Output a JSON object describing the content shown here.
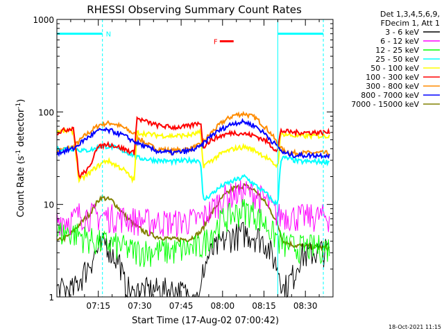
{
  "chart_data": {
    "type": "line",
    "title": "RHESSI Observing Summary Count Rates",
    "xlabel": "Start Time (17-Aug-02 07:00:42)",
    "ylabel_main": "Count Rate (s",
    "ylabel_sup1": "-1",
    "ylabel_mid": " detector",
    "ylabel_sup2": "-1",
    "ylabel_end": ")",
    "y_scale": "log",
    "ylim": [
      1,
      1000
    ],
    "xlim_minutes": [
      0,
      100
    ],
    "y_ticks": [
      "1",
      "10",
      "100",
      "1000"
    ],
    "x_ticks": [
      {
        "label": "07:15",
        "minute": 15
      },
      {
        "label": "07:30",
        "minute": 30
      },
      {
        "label": "07:45",
        "minute": 45
      },
      {
        "label": "08:00",
        "minute": 60
      },
      {
        "label": "08:15",
        "minute": 75
      },
      {
        "label": "08:30",
        "minute": 90
      }
    ],
    "legend_header": [
      "Det 1,3,4,5,6,9,",
      "FDecim 1, Att 1"
    ],
    "legend_placement": "right",
    "series": [
      {
        "name": "3 - 6 keV",
        "color": "#000000",
        "night": 1.0,
        "x": [
          0,
          6,
          14,
          18,
          20,
          23,
          24,
          28,
          29,
          42,
          52,
          53,
          55,
          58,
          62,
          68,
          73,
          76,
          78,
          81,
          82,
          86,
          88,
          96,
          99
        ],
        "y": [
          1.2,
          1.2,
          3,
          4,
          3,
          2.4,
          1.5,
          1,
          1.2,
          1.2,
          1,
          2,
          2.8,
          3.5,
          4.5,
          5,
          4.5,
          3.8,
          2.8,
          1.8,
          1.2,
          1.8,
          2.8,
          3.2,
          3.2
        ]
      },
      {
        "name": "6 - 12 keV",
        "color": "#ff00ff",
        "night": 7.5,
        "x": [
          0,
          6,
          8,
          16,
          20,
          28,
          29,
          42,
          52,
          56,
          60,
          64,
          68,
          72,
          76,
          78,
          81,
          82,
          86,
          88,
          96,
          99
        ],
        "y": [
          7,
          7,
          8,
          7.5,
          7.5,
          7,
          6.8,
          6.5,
          7,
          9,
          12,
          13,
          14,
          13,
          11,
          9,
          7.5,
          8,
          7.5,
          7.5,
          7.5,
          7.5
        ]
      },
      {
        "name": "12 - 25 keV",
        "color": "#00ff00",
        "night": 4.2,
        "x": [
          0,
          6,
          10,
          14,
          20,
          24,
          26,
          28,
          29,
          42,
          52,
          56,
          60,
          64,
          68,
          72,
          76,
          78,
          81,
          82,
          86,
          88,
          96,
          99
        ],
        "y": [
          5,
          5,
          4.5,
          4,
          3.8,
          3.5,
          3.3,
          3.2,
          3.2,
          3.2,
          3.5,
          5,
          7,
          8,
          9,
          8,
          6,
          5,
          4,
          3.8,
          3.5,
          3.5,
          3.5,
          3.5
        ]
      },
      {
        "name": "25 - 50 keV",
        "color": "#00ffff",
        "night": 10.0,
        "x": [
          0,
          6,
          10,
          14,
          16,
          20,
          24,
          28,
          29,
          36,
          42,
          48,
          52,
          53,
          56,
          60,
          64,
          68,
          72,
          76,
          78,
          80,
          81,
          82,
          86,
          88,
          96,
          99
        ],
        "y": [
          40,
          40,
          38,
          40,
          43,
          42,
          38,
          34,
          32,
          30,
          29,
          30,
          30,
          11,
          13,
          16,
          18,
          20,
          16,
          13,
          11,
          10,
          30,
          32,
          30,
          29,
          29,
          29
        ]
      },
      {
        "name": "50 - 100 keV",
        "color": "#ffff00",
        "night": 14.0,
        "x": [
          0,
          6,
          8,
          12,
          14,
          18,
          20,
          24,
          28,
          29,
          36,
          42,
          48,
          52,
          53,
          56,
          60,
          64,
          68,
          72,
          76,
          78,
          80,
          81,
          82,
          86,
          88,
          96,
          99
        ],
        "y": [
          62,
          62,
          18,
          22,
          25,
          30,
          28,
          24,
          18,
          60,
          56,
          55,
          56,
          60,
          26,
          30,
          36,
          40,
          42,
          38,
          32,
          28,
          26,
          56,
          58,
          55,
          55,
          55,
          55
        ]
      },
      {
        "name": "100 - 300 keV",
        "color": "#ff0000",
        "night": 22.0,
        "x": [
          0,
          6,
          8,
          12,
          14,
          18,
          20,
          24,
          28,
          29,
          36,
          42,
          48,
          52,
          53,
          56,
          60,
          64,
          68,
          72,
          76,
          78,
          80,
          81,
          82,
          86,
          88,
          96,
          99
        ],
        "y": [
          60,
          68,
          20,
          25,
          40,
          45,
          44,
          40,
          36,
          85,
          72,
          68,
          70,
          78,
          42,
          50,
          56,
          60,
          58,
          55,
          48,
          42,
          38,
          62,
          62,
          60,
          60,
          60,
          60
        ]
      },
      {
        "name": "300 - 800 keV",
        "color": "#ff8c00",
        "night": 11.0,
        "x": [
          0,
          6,
          10,
          14,
          16,
          20,
          24,
          28,
          32,
          36,
          42,
          48,
          52,
          56,
          60,
          64,
          68,
          72,
          76,
          78,
          80,
          82,
          86,
          88,
          96,
          99
        ],
        "y": [
          38,
          42,
          55,
          68,
          74,
          76,
          68,
          58,
          46,
          40,
          38,
          40,
          44,
          60,
          78,
          92,
          96,
          86,
          66,
          56,
          45,
          38,
          36,
          36,
          36,
          36
        ]
      },
      {
        "name": "800 - 7000 keV",
        "color": "#0000ff",
        "night": 9.0,
        "x": [
          0,
          6,
          10,
          14,
          16,
          20,
          24,
          28,
          32,
          36,
          42,
          48,
          52,
          56,
          60,
          64,
          68,
          72,
          76,
          78,
          80,
          82,
          86,
          88,
          96,
          99
        ],
        "y": [
          36,
          40,
          50,
          60,
          64,
          62,
          56,
          48,
          42,
          38,
          36,
          38,
          42,
          56,
          66,
          76,
          78,
          70,
          56,
          48,
          42,
          36,
          34,
          34,
          34,
          34
        ]
      },
      {
        "name": "7000 - 15000 keV",
        "color": "#808000",
        "night": 3.4,
        "x": [
          0,
          4,
          8,
          12,
          14,
          16,
          20,
          24,
          28,
          32,
          36,
          42,
          48,
          52,
          56,
          60,
          64,
          68,
          72,
          76,
          78,
          80,
          82,
          86,
          88,
          96,
          99
        ],
        "y": [
          4,
          4.5,
          6,
          8,
          10,
          12,
          11,
          8,
          6,
          5,
          4.5,
          4.2,
          4.2,
          5,
          8,
          12,
          15,
          16,
          14,
          10,
          8,
          6,
          4,
          3.6,
          3.6,
          3.4,
          3.4
        ]
      }
    ],
    "night_intervals_minutes": [
      [
        0,
        6.5
      ],
      [
        23.5,
        28.5
      ],
      [
        52,
        58
      ],
      [
        78.5,
        81.5
      ]
    ],
    "saa_markers": [
      {
        "label": "N",
        "color": "#00ffff",
        "x_start": 0,
        "x_end": 16.5,
        "y": 700
      },
      {
        "label": "F",
        "color": "#ff0000",
        "x_start": 59,
        "x_end": 64,
        "y": 580
      },
      {
        "label": "",
        "color": "#00ffff",
        "x_start": 80,
        "x_end": 96.5,
        "y": 700
      }
    ],
    "vertical_markers_minutes": [
      {
        "minute": 0,
        "color": "#00ffff",
        "style": "solid"
      },
      {
        "minute": 16.5,
        "color": "#00ffff",
        "style": "dashed"
      },
      {
        "minute": 80,
        "color": "#00ffff",
        "style": "solid"
      },
      {
        "minute": 96.5,
        "color": "#00ffff",
        "style": "dashed"
      }
    ],
    "grid": false
  },
  "footer_timestamp": "18-Oct-2021 11:15"
}
